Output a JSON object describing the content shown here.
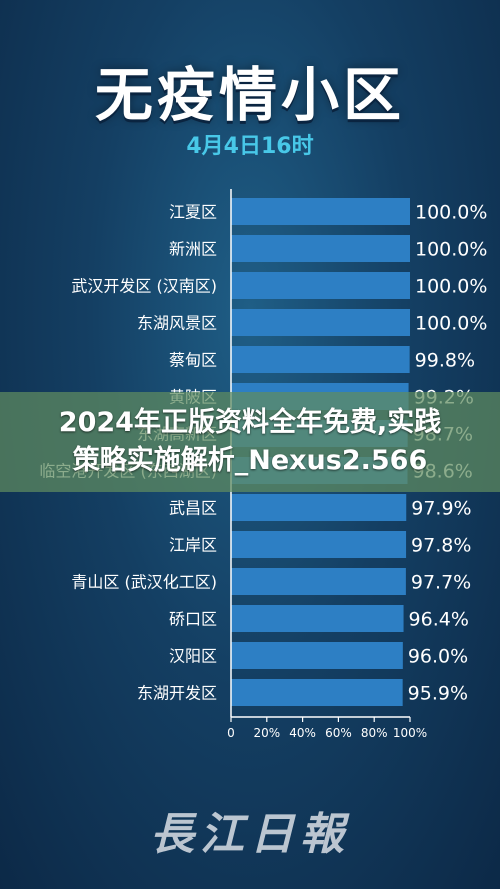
{
  "page": {
    "title": "无疫情小区",
    "subtitle": "4月4日16时"
  },
  "chart_data": {
    "type": "bar",
    "orientation": "horizontal",
    "categories": [
      "江夏区",
      "新洲区",
      "武汉开发区 (汉南区)",
      "东湖风景区",
      "蔡甸区",
      "黄陂区",
      "东湖高新区",
      "临空港开发区 (东西湖区)",
      "武昌区",
      "江岸区",
      "青山区 (武汉化工区)",
      "硚口区",
      "汉阳区",
      "东湖开发区"
    ],
    "values": [
      100.0,
      100.0,
      100.0,
      100.0,
      99.8,
      99.2,
      98.7,
      98.6,
      97.9,
      97.8,
      97.7,
      96.4,
      96.0,
      95.9
    ],
    "value_labels": [
      "100.0%",
      "100.0%",
      "100.0%",
      "100.0%",
      "99.8%",
      "99.2%",
      "98.7%",
      "98.6%",
      "97.9%",
      "97.8%",
      "97.7%",
      "96.4%",
      "96.0%",
      "95.9%"
    ],
    "xlim": [
      0,
      100
    ],
    "x_ticks": [
      "0",
      "20%",
      "40%",
      "60%",
      "80%",
      "100%"
    ],
    "bar_color": "#2d7fc4",
    "grid": false
  },
  "banner": {
    "line1": "2024年正版资料全年免费,实践",
    "line2": "策略实施解析_Nexus2.566"
  },
  "logo": {
    "text": "長江日報"
  }
}
